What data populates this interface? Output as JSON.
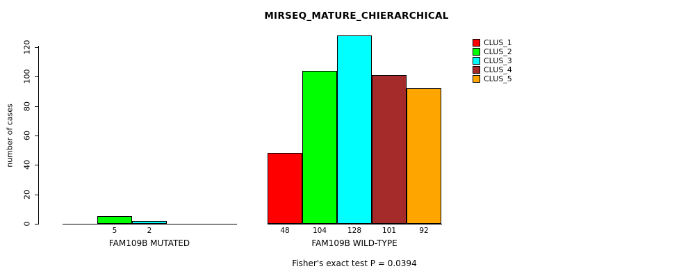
{
  "chart_data": {
    "type": "bar",
    "title": "MIRSEQ_MATURE_CHIERARCHICAL",
    "ylabel": "number of cases",
    "footnote": "Fisher's exact test P = 0.0394",
    "ylim": [
      0,
      128
    ],
    "yticks": [
      0,
      20,
      40,
      60,
      80,
      100,
      120
    ],
    "series": [
      "CLUS_1",
      "CLUS_2",
      "CLUS_3",
      "CLUS_4",
      "CLUS_5"
    ],
    "colors": [
      "#ff0000",
      "#00ff00",
      "#00ffff",
      "#a52a2a",
      "#ffa500"
    ],
    "groups": [
      {
        "label": "FAM109B MUTATED",
        "values": [
          0,
          5,
          2,
          0,
          0
        ]
      },
      {
        "label": "FAM109B WILD-TYPE",
        "values": [
          48,
          104,
          128,
          101,
          92
        ]
      }
    ],
    "legend_position": "top-right",
    "grid": false
  }
}
